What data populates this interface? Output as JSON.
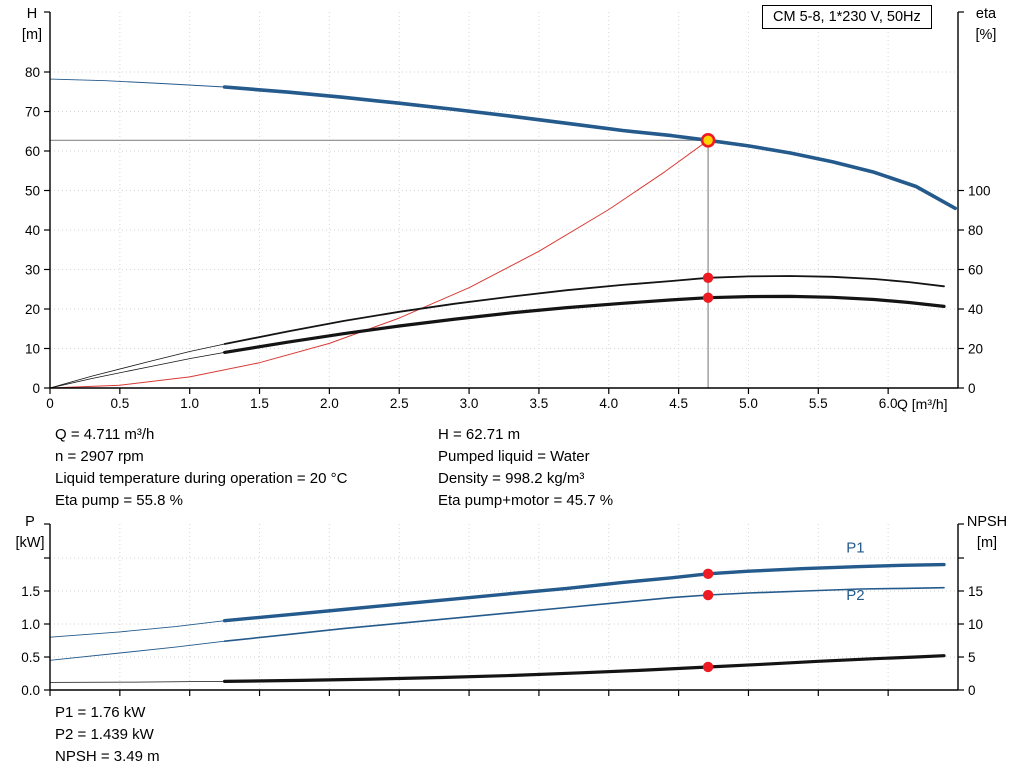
{
  "title_box": "CM 5-8, 1*230 V, 50Hz",
  "colors": {
    "curve_blue": "#245a8c",
    "curve_red": "#d93a36",
    "curve_black": "#141414",
    "dot_red": "#ed1c24",
    "op_fill": "#ffd400",
    "crosshair": "#8a8a8a",
    "grid": "#d6d6d6",
    "axis": "#000000"
  },
  "chart_data": [
    {
      "type": "line",
      "name": "head-efficiency-chart",
      "x_label": "Q [m³/h]",
      "x_range": [
        0,
        6.5
      ],
      "x_ticks": [
        [
          0,
          "0"
        ],
        [
          0.5,
          "0.5"
        ],
        [
          1,
          "1.0"
        ],
        [
          1.5,
          "1.5"
        ],
        [
          2,
          "2.0"
        ],
        [
          2.5,
          "2.5"
        ],
        [
          3,
          "3.0"
        ],
        [
          3.5,
          "3.5"
        ],
        [
          4,
          "4.0"
        ],
        [
          4.5,
          "4.5"
        ],
        [
          5,
          "5.0"
        ],
        [
          5.5,
          "5.5"
        ],
        [
          6,
          "6.0"
        ]
      ],
      "y_left": {
        "label": [
          "H",
          "[m]"
        ],
        "range": [
          0,
          95
        ],
        "ticks": [
          [
            0,
            "0"
          ],
          [
            10,
            "10"
          ],
          [
            20,
            "20"
          ],
          [
            30,
            "30"
          ],
          [
            40,
            "40"
          ],
          [
            50,
            "50"
          ],
          [
            60,
            "60"
          ],
          [
            70,
            "70"
          ],
          [
            80,
            "80"
          ]
        ]
      },
      "y_right": {
        "label": [
          "eta",
          "[%]"
        ],
        "range": [
          0,
          190
        ],
        "ticks": [
          [
            0,
            "0"
          ],
          [
            20,
            "20"
          ],
          [
            40,
            "40"
          ],
          [
            60,
            "60"
          ],
          [
            80,
            "80"
          ],
          [
            100,
            "100"
          ]
        ]
      },
      "series": [
        {
          "name": "hq-curve-thin",
          "axis": "left",
          "color": "curve_blue",
          "width": 0.9,
          "points": [
            [
              0,
              78.2
            ],
            [
              0.4,
              77.8
            ],
            [
              0.8,
              77.1
            ],
            [
              1.25,
              76.2
            ]
          ]
        },
        {
          "name": "hq-curve",
          "axis": "left",
          "color": "curve_blue",
          "width": 3.6,
          "points": [
            [
              1.25,
              76.2
            ],
            [
              1.7,
              74.9
            ],
            [
              2.1,
              73.6
            ],
            [
              2.5,
              72.1
            ],
            [
              2.9,
              70.5
            ],
            [
              3.3,
              68.8
            ],
            [
              3.7,
              67.0
            ],
            [
              4.1,
              65.2
            ],
            [
              4.45,
              63.9
            ],
            [
              4.711,
              62.71
            ],
            [
              5.0,
              61.3
            ],
            [
              5.3,
              59.5
            ],
            [
              5.6,
              57.3
            ],
            [
              5.9,
              54.6
            ],
            [
              6.2,
              51.0
            ],
            [
              6.48,
              45.5
            ]
          ]
        },
        {
          "name": "system-curve",
          "axis": "left",
          "color": "curve_red",
          "width": 1,
          "points": [
            [
              0,
              0
            ],
            [
              0.5,
              0.7
            ],
            [
              1.0,
              2.8
            ],
            [
              1.5,
              6.4
            ],
            [
              2.0,
              11.3
            ],
            [
              2.5,
              17.7
            ],
            [
              3.0,
              25.4
            ],
            [
              3.5,
              34.6
            ],
            [
              4.0,
              45.2
            ],
            [
              4.4,
              54.7
            ],
            [
              4.711,
              62.71
            ]
          ]
        },
        {
          "name": "eta-pump-curve-thin",
          "axis": "right",
          "color": "curve_black",
          "width": 0.8,
          "points": [
            [
              0,
              0
            ],
            [
              0.3,
              6
            ],
            [
              0.7,
              13.2
            ],
            [
              1.0,
              18.5
            ],
            [
              1.25,
              22.3
            ]
          ]
        },
        {
          "name": "eta-pump-curve",
          "axis": "right",
          "color": "curve_black",
          "width": 1.8,
          "points": [
            [
              1.25,
              22.3
            ],
            [
              1.7,
              28.6
            ],
            [
              2.1,
              33.9
            ],
            [
              2.5,
              38.6
            ],
            [
              2.9,
              42.7
            ],
            [
              3.3,
              46.3
            ],
            [
              3.7,
              49.5
            ],
            [
              4.1,
              52.2
            ],
            [
              4.45,
              54.2
            ],
            [
              4.711,
              55.8
            ],
            [
              5.0,
              56.5
            ],
            [
              5.3,
              56.7
            ],
            [
              5.6,
              56.3
            ],
            [
              5.9,
              55.2
            ],
            [
              6.15,
              53.6
            ],
            [
              6.4,
              51.5
            ]
          ]
        },
        {
          "name": "eta-pump-motor-curve-thin",
          "axis": "right",
          "color": "curve_black",
          "width": 0.8,
          "points": [
            [
              0,
              0
            ],
            [
              0.3,
              4.8
            ],
            [
              0.7,
              10.6
            ],
            [
              1.0,
              14.9
            ],
            [
              1.25,
              18.0
            ]
          ]
        },
        {
          "name": "eta-pump-motor-curve",
          "axis": "right",
          "color": "curve_black",
          "width": 3.2,
          "points": [
            [
              1.25,
              18.0
            ],
            [
              1.7,
              23.2
            ],
            [
              2.1,
              27.5
            ],
            [
              2.5,
              31.4
            ],
            [
              2.9,
              34.9
            ],
            [
              3.3,
              38.0
            ],
            [
              3.7,
              40.7
            ],
            [
              4.1,
              42.9
            ],
            [
              4.45,
              44.6
            ],
            [
              4.711,
              45.7
            ],
            [
              5.0,
              46.3
            ],
            [
              5.3,
              46.4
            ],
            [
              5.6,
              45.9
            ],
            [
              5.9,
              44.8
            ],
            [
              6.15,
              43.3
            ],
            [
              6.4,
              41.3
            ]
          ]
        }
      ],
      "operating_point": {
        "q": 4.711,
        "h": 62.71
      },
      "markers": [
        {
          "q": 4.711,
          "value": 55.8,
          "axis": "right"
        },
        {
          "q": 4.711,
          "value": 45.7,
          "axis": "right"
        }
      ]
    },
    {
      "type": "line",
      "name": "power-npsh-chart",
      "x_label": "",
      "x_range": [
        0,
        6.5
      ],
      "x_ticks": [
        [
          0,
          ""
        ],
        [
          0.5,
          ""
        ],
        [
          1,
          ""
        ],
        [
          1.5,
          ""
        ],
        [
          2,
          ""
        ],
        [
          2.5,
          ""
        ],
        [
          3,
          ""
        ],
        [
          3.5,
          ""
        ],
        [
          4,
          ""
        ],
        [
          4.5,
          ""
        ],
        [
          5,
          ""
        ],
        [
          5.5,
          ""
        ],
        [
          6,
          ""
        ]
      ],
      "y_left": {
        "label": [
          "P",
          "[kW]"
        ],
        "range": [
          0,
          2.5
        ],
        "ticks": [
          [
            0,
            "0.0"
          ],
          [
            0.5,
            "0.5"
          ],
          [
            1,
            "1.0"
          ],
          [
            1.5,
            "1.5"
          ],
          [
            2,
            ""
          ]
        ]
      },
      "y_right": {
        "label": [
          "NPSH",
          "[m]"
        ],
        "range": [
          0,
          25
        ],
        "ticks": [
          [
            0,
            "0"
          ],
          [
            5,
            "5"
          ],
          [
            10,
            "10"
          ],
          [
            15,
            "15"
          ],
          [
            20,
            ""
          ]
        ]
      },
      "series": [
        {
          "name": "p1-curve-thin",
          "axis": "left",
          "color": "curve_blue",
          "width": 0.9,
          "points": [
            [
              0,
              0.8
            ],
            [
              0.5,
              0.88
            ],
            [
              0.9,
              0.96
            ],
            [
              1.25,
              1.05
            ]
          ]
        },
        {
          "name": "p1-curve",
          "axis": "left",
          "color": "curve_blue",
          "width": 3.4,
          "points": [
            [
              1.25,
              1.05
            ],
            [
              1.7,
              1.14
            ],
            [
              2.1,
              1.22
            ],
            [
              2.5,
              1.3
            ],
            [
              2.9,
              1.38
            ],
            [
              3.3,
              1.46
            ],
            [
              3.7,
              1.54
            ],
            [
              4.1,
              1.63
            ],
            [
              4.45,
              1.7
            ],
            [
              4.711,
              1.76
            ],
            [
              5.0,
              1.8
            ],
            [
              5.4,
              1.84
            ],
            [
              5.8,
              1.87
            ],
            [
              6.1,
              1.89
            ],
            [
              6.4,
              1.9
            ]
          ]
        },
        {
          "name": "p2-curve-thin",
          "axis": "left",
          "color": "curve_blue",
          "width": 0.9,
          "points": [
            [
              0,
              0.45
            ],
            [
              0.5,
              0.56
            ],
            [
              0.9,
              0.65
            ],
            [
              1.25,
              0.74
            ]
          ]
        },
        {
          "name": "p2-curve",
          "axis": "left",
          "color": "curve_blue",
          "width": 1.6,
          "points": [
            [
              1.25,
              0.74
            ],
            [
              1.7,
              0.84
            ],
            [
              2.1,
              0.93
            ],
            [
              2.5,
              1.01
            ],
            [
              2.9,
              1.09
            ],
            [
              3.3,
              1.17
            ],
            [
              3.7,
              1.25
            ],
            [
              4.1,
              1.33
            ],
            [
              4.45,
              1.4
            ],
            [
              4.711,
              1.439
            ],
            [
              5.0,
              1.47
            ],
            [
              5.4,
              1.5
            ],
            [
              5.8,
              1.53
            ],
            [
              6.1,
              1.54
            ],
            [
              6.4,
              1.55
            ]
          ]
        },
        {
          "name": "npsh-curve-thin",
          "axis": "right",
          "color": "curve_black",
          "width": 0.8,
          "points": [
            [
              0,
              1.15
            ],
            [
              0.6,
              1.2
            ],
            [
              1.25,
              1.3
            ]
          ]
        },
        {
          "name": "npsh-curve",
          "axis": "right",
          "color": "curve_black",
          "width": 3.2,
          "points": [
            [
              1.25,
              1.3
            ],
            [
              1.8,
              1.45
            ],
            [
              2.3,
              1.65
            ],
            [
              2.8,
              1.9
            ],
            [
              3.3,
              2.2
            ],
            [
              3.8,
              2.6
            ],
            [
              4.2,
              2.95
            ],
            [
              4.711,
              3.49
            ],
            [
              5.1,
              3.9
            ],
            [
              5.5,
              4.35
            ],
            [
              5.9,
              4.75
            ],
            [
              6.2,
              5.0
            ],
            [
              6.4,
              5.2
            ]
          ]
        }
      ],
      "markers": [
        {
          "q": 4.711,
          "value": 1.76,
          "axis": "left"
        },
        {
          "q": 4.711,
          "value": 1.439,
          "axis": "left"
        },
        {
          "q": 4.711,
          "value": 3.49,
          "axis": "right"
        }
      ],
      "curve_labels": [
        {
          "text": "P1",
          "q": 5.7,
          "value": 2.08,
          "axis": "left"
        },
        {
          "text": "P2",
          "q": 5.7,
          "value": 1.36,
          "axis": "left"
        }
      ]
    }
  ],
  "info": {
    "left": [
      "Q = 4.711 m³/h",
      "n = 2907 rpm",
      "Liquid temperature during operation = 20 °C",
      "Eta pump = 55.8 %"
    ],
    "right": [
      "H = 62.71 m",
      "Pumped liquid = Water",
      "Density = 998.2 kg/m³",
      "Eta pump+motor = 45.7 %"
    ]
  },
  "results": [
    "P1 = 1.76 kW",
    "P2 = 1.439 kW",
    "NPSH = 3.49 m"
  ]
}
